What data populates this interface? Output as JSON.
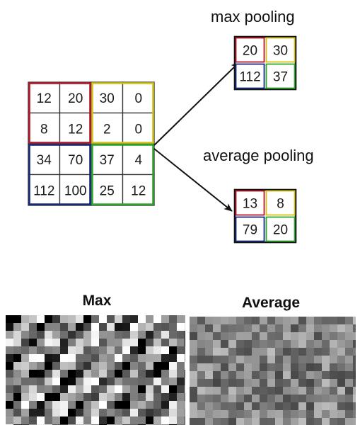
{
  "input_grid": {
    "rows": [
      [
        "12",
        "20",
        "30",
        "0"
      ],
      [
        "8",
        "12",
        "2",
        "0"
      ],
      [
        "34",
        "70",
        "37",
        "4"
      ],
      [
        "112",
        "100",
        "25",
        "12"
      ]
    ],
    "quadrant_colors": [
      "#b0182a",
      "#d4c21a",
      "#1a2a7a",
      "#2fa82f"
    ]
  },
  "max_pooling": {
    "title": "max pooling",
    "values": [
      "20",
      "30",
      "112",
      "37"
    ]
  },
  "average_pooling": {
    "title": "average pooling",
    "values": [
      "13",
      "8",
      "79",
      "20"
    ]
  },
  "panels": {
    "max_label": "Max",
    "average_label": "Average"
  }
}
